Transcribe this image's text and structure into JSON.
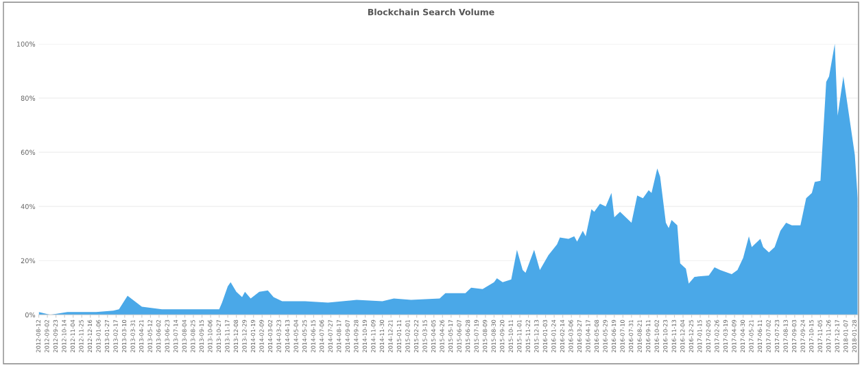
{
  "chart_data": {
    "type": "area",
    "title": "Blockchain Search Volume",
    "x": [
      "2012-08-12",
      "2012-09-09",
      "2012-10-21",
      "2012-12-30",
      "2013-02-10",
      "2013-02-24",
      "2013-03-17",
      "2013-04-21",
      "2013-06-09",
      "2013-06-30",
      "2013-09-01",
      "2013-10-27",
      "2013-11-03",
      "2013-11-17",
      "2013-11-24",
      "2013-12-08",
      "2013-12-22",
      "2013-12-29",
      "2014-01-12",
      "2014-02-02",
      "2014-02-23",
      "2014-03-09",
      "2014-03-30",
      "2014-05-25",
      "2014-07-20",
      "2014-09-28",
      "2014-11-30",
      "2014-12-28",
      "2015-02-08",
      "2015-04-19",
      "2015-05-03",
      "2015-06-21",
      "2015-07-05",
      "2015-08-02",
      "2015-08-30",
      "2015-09-06",
      "2015-09-20",
      "2015-10-11",
      "2015-10-25",
      "2015-11-08",
      "2015-11-15",
      "2015-12-06",
      "2015-12-20",
      "2016-01-10",
      "2016-01-31",
      "2016-02-07",
      "2016-02-28",
      "2016-03-13",
      "2016-03-20",
      "2016-04-03",
      "2016-04-10",
      "2016-04-24",
      "2016-05-01",
      "2016-05-15",
      "2016-05-29",
      "2016-06-12",
      "2016-06-19",
      "2016-07-03",
      "2016-07-17",
      "2016-07-31",
      "2016-08-14",
      "2016-08-28",
      "2016-09-11",
      "2016-09-18",
      "2016-10-02",
      "2016-10-09",
      "2016-10-23",
      "2016-10-30",
      "2016-11-06",
      "2016-11-20",
      "2016-11-27",
      "2016-12-11",
      "2016-12-18",
      "2017-01-01",
      "2017-02-05",
      "2017-02-19",
      "2017-03-05",
      "2017-04-02",
      "2017-04-16",
      "2017-04-30",
      "2017-05-14",
      "2017-05-21",
      "2017-06-11",
      "2017-06-18",
      "2017-07-02",
      "2017-07-16",
      "2017-07-30",
      "2017-08-13",
      "2017-08-27",
      "2017-09-17",
      "2017-10-01",
      "2017-10-15",
      "2017-10-22",
      "2017-11-05",
      "2017-11-19",
      "2017-11-26",
      "2017-12-10",
      "2017-12-17",
      "2017-12-31",
      "2018-01-14",
      "2018-01-28",
      "2018-02-04"
    ],
    "series": [
      {
        "color": "#4aa8e8",
        "values": [
          1,
          0,
          1,
          1,
          1.5,
          2,
          7,
          3,
          2,
          2,
          2,
          2,
          4.5,
          10.5,
          12,
          8.5,
          6.5,
          8.5,
          6,
          8.5,
          9,
          6.5,
          5,
          5,
          4.5,
          5.5,
          5,
          6,
          5.5,
          6,
          8,
          8,
          10,
          9.5,
          12,
          13.5,
          12,
          13,
          24,
          16.5,
          15.5,
          24,
          16.5,
          22,
          26,
          28.5,
          28,
          29,
          27,
          31,
          29,
          39,
          38,
          41,
          40,
          45,
          36,
          38,
          36,
          34,
          44,
          43,
          46,
          45,
          54,
          51,
          34,
          32,
          35,
          33,
          19,
          17,
          11.5,
          14,
          14.5,
          17.5,
          16.5,
          15,
          16.5,
          21,
          29,
          25,
          28,
          25,
          23,
          25,
          31,
          34,
          33,
          33,
          43,
          45,
          49,
          49.5,
          86,
          88,
          100,
          73.5,
          88,
          73.5,
          59,
          43
        ]
      }
    ],
    "xlim": [
      "2012-08-12",
      "2018-02-04"
    ],
    "xticks": [
      {
        "value": "2012-08-12",
        "label": "2012-08-12"
      },
      {
        "value": "2012-09-02",
        "label": "2012-09-02"
      },
      {
        "value": "2012-09-23",
        "label": "2012-09-23"
      },
      {
        "value": "2012-10-14",
        "label": "2012-10-14"
      },
      {
        "value": "2012-11-04",
        "label": "2012-11-04"
      },
      {
        "value": "2012-11-25",
        "label": "2012-11-25"
      },
      {
        "value": "2012-12-16",
        "label": "2012-12-16"
      },
      {
        "value": "2013-01-06",
        "label": "2013-01-06"
      },
      {
        "value": "2013-01-27",
        "label": "2013-01-27"
      },
      {
        "value": "2013-02-17",
        "label": "2013-02-17"
      },
      {
        "value": "2013-03-10",
        "label": "2013-03-10"
      },
      {
        "value": "2013-03-31",
        "label": "2013-03-31"
      },
      {
        "value": "2013-04-21",
        "label": "2013-04-21"
      },
      {
        "value": "2013-05-12",
        "label": "2013-05-12"
      },
      {
        "value": "2013-06-02",
        "label": "2013-06-02"
      },
      {
        "value": "2013-06-23",
        "label": "2013-06-23"
      },
      {
        "value": "2013-07-14",
        "label": "2013-07-14"
      },
      {
        "value": "2013-08-04",
        "label": "2013-08-04"
      },
      {
        "value": "2013-08-25",
        "label": "2013-08-25"
      },
      {
        "value": "2013-09-15",
        "label": "2013-09-15"
      },
      {
        "value": "2013-10-06",
        "label": "2013-10-06"
      },
      {
        "value": "2013-10-27",
        "label": "2013-10-27"
      },
      {
        "value": "2013-11-17",
        "label": "2013-11-17"
      },
      {
        "value": "2013-12-08",
        "label": "2013-12-08"
      },
      {
        "value": "2013-12-29",
        "label": "2013-12-29"
      },
      {
        "value": "2014-01-19",
        "label": "2014-01-19"
      },
      {
        "value": "2014-02-09",
        "label": "2014-02-09"
      },
      {
        "value": "2014-03-02",
        "label": "2014-03-02"
      },
      {
        "value": "2014-03-23",
        "label": "2014-03-23"
      },
      {
        "value": "2014-04-13",
        "label": "2014-04-13"
      },
      {
        "value": "2014-05-04",
        "label": "2014-05-04"
      },
      {
        "value": "2014-05-25",
        "label": "2014-05-25"
      },
      {
        "value": "2014-06-15",
        "label": "2014-06-15"
      },
      {
        "value": "2014-07-06",
        "label": "2014-07-06"
      },
      {
        "value": "2014-07-27",
        "label": "2014-07-27"
      },
      {
        "value": "2014-08-17",
        "label": "2014-08-17"
      },
      {
        "value": "2014-09-07",
        "label": "2014-09-07"
      },
      {
        "value": "2014-09-28",
        "label": "2014-09-28"
      },
      {
        "value": "2014-10-19",
        "label": "2014-10-19"
      },
      {
        "value": "2014-11-09",
        "label": "2014-11-09"
      },
      {
        "value": "2014-11-30",
        "label": "2014-11-30"
      },
      {
        "value": "2014-12-21",
        "label": "2014-12-21"
      },
      {
        "value": "2015-01-11",
        "label": "2015-01-11"
      },
      {
        "value": "2015-02-01",
        "label": "2015-02-01"
      },
      {
        "value": "2015-02-22",
        "label": "2015-02-22"
      },
      {
        "value": "2015-03-15",
        "label": "2015-03-15"
      },
      {
        "value": "2015-04-05",
        "label": "2015-04-05"
      },
      {
        "value": "2015-04-26",
        "label": "2015-04-26"
      },
      {
        "value": "2015-05-17",
        "label": "2015-05-17"
      },
      {
        "value": "2015-06-07",
        "label": "2015-06-07"
      },
      {
        "value": "2015-06-28",
        "label": "2015-06-28"
      },
      {
        "value": "2015-07-19",
        "label": "2015-07-19"
      },
      {
        "value": "2015-08-09",
        "label": "2015-08-09"
      },
      {
        "value": "2015-08-30",
        "label": "2015-08-30"
      },
      {
        "value": "2015-09-20",
        "label": "2015-09-20"
      },
      {
        "value": "2015-10-11",
        "label": "2015-10-11"
      },
      {
        "value": "2015-11-01",
        "label": "2015-11-01"
      },
      {
        "value": "2015-11-22",
        "label": "2015-11-22"
      },
      {
        "value": "2015-12-13",
        "label": "2015-12-13"
      },
      {
        "value": "2016-01-03",
        "label": "2016-01-03"
      },
      {
        "value": "2016-01-24",
        "label": "2016-01-24"
      },
      {
        "value": "2016-02-14",
        "label": "2016-02-14"
      },
      {
        "value": "2016-03-06",
        "label": "2016-03-06"
      },
      {
        "value": "2016-03-27",
        "label": "2016-03-27"
      },
      {
        "value": "2016-04-17",
        "label": "2016-04-17"
      },
      {
        "value": "2016-05-08",
        "label": "2016-05-08"
      },
      {
        "value": "2016-05-29",
        "label": "2016-05-29"
      },
      {
        "value": "2016-06-19",
        "label": "2016-06-19"
      },
      {
        "value": "2016-07-10",
        "label": "2016-07-10"
      },
      {
        "value": "2016-07-31",
        "label": "2016-07-31"
      },
      {
        "value": "2016-08-21",
        "label": "2016-08-21"
      },
      {
        "value": "2016-09-11",
        "label": "2016-09-11"
      },
      {
        "value": "2016-10-02",
        "label": "2016-10-02"
      },
      {
        "value": "2016-10-23",
        "label": "2016-10-23"
      },
      {
        "value": "2016-11-13",
        "label": "2016-11-13"
      },
      {
        "value": "2016-12-04",
        "label": "2016-12-04"
      },
      {
        "value": "2016-12-25",
        "label": "2016-12-25"
      },
      {
        "value": "2017-01-15",
        "label": "2017-01-15"
      },
      {
        "value": "2017-02-05",
        "label": "2017-02-05"
      },
      {
        "value": "2017-02-26",
        "label": "2017-02-26"
      },
      {
        "value": "2017-03-19",
        "label": "2017-03-19"
      },
      {
        "value": "2017-04-09",
        "label": "2017-04-09"
      },
      {
        "value": "2017-04-30",
        "label": "2017-04-30"
      },
      {
        "value": "2017-05-21",
        "label": "2017-05-21"
      },
      {
        "value": "2017-06-11",
        "label": "2017-06-11"
      },
      {
        "value": "2017-07-02",
        "label": "2017-07-02"
      },
      {
        "value": "2017-07-23",
        "label": "2017-07-23"
      },
      {
        "value": "2017-08-13",
        "label": "2017-08-13"
      },
      {
        "value": "2017-09-03",
        "label": "2017-09-03"
      },
      {
        "value": "2017-09-24",
        "label": "2017-09-24"
      },
      {
        "value": "2017-10-15",
        "label": "2017-10-15"
      },
      {
        "value": "2017-11-05",
        "label": "2017-11-05"
      },
      {
        "value": "2017-11-26",
        "label": "2017-11-26"
      },
      {
        "value": "2017-12-17",
        "label": "2017-12-17"
      },
      {
        "value": "2018-01-07",
        "label": "2018-01-07"
      },
      {
        "value": "2018-01-28",
        "label": "2018-01-28"
      }
    ],
    "ylim": [
      0,
      100
    ],
    "yticks": [
      {
        "value": 0,
        "label": "0%"
      },
      {
        "value": 20,
        "label": "20%"
      },
      {
        "value": 40,
        "label": "40%"
      },
      {
        "value": 60,
        "label": "60%"
      },
      {
        "value": 80,
        "label": "80%"
      },
      {
        "value": 100,
        "label": "100%"
      }
    ],
    "grid": "y"
  }
}
